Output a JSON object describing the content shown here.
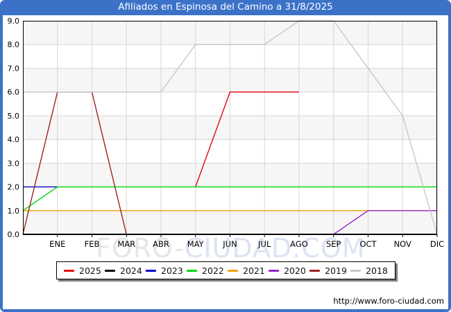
{
  "title_bar": {
    "title": "Afiliados en Espinosa del Camino a 31/8/2025"
  },
  "chart_data": {
    "type": "line",
    "title": "Afiliados en Espinosa del Camino a 31/8/2025",
    "months": [
      "ENE",
      "FEB",
      "MAR",
      "ABR",
      "MAY",
      "JUN",
      "JUL",
      "AGO",
      "SEP",
      "OCT",
      "NOV",
      "DIC"
    ],
    "ytick_labels": [
      "0.0",
      "1.0",
      "2.0",
      "3.0",
      "4.0",
      "5.0",
      "6.0",
      "7.0",
      "8.0",
      "9.0"
    ],
    "ylim": [
      0,
      9
    ],
    "grid": true,
    "legend_position": "bottom",
    "series": [
      {
        "name": "2025",
        "color": "#e60012",
        "prev_dec": null,
        "values": [
          null,
          null,
          null,
          null,
          2,
          6,
          6,
          6,
          null,
          null,
          null,
          null
        ]
      },
      {
        "name": "2024",
        "color": "#000000",
        "prev_dec": null,
        "values": [
          null,
          null,
          null,
          null,
          null,
          null,
          null,
          null,
          null,
          null,
          null,
          null
        ]
      },
      {
        "name": "2023",
        "color": "#0000cc",
        "prev_dec": 2,
        "values": [
          2,
          null,
          null,
          null,
          null,
          null,
          null,
          null,
          null,
          null,
          null,
          null
        ]
      },
      {
        "name": "2022",
        "color": "#00d400",
        "prev_dec": 1,
        "values": [
          2,
          2,
          2,
          2,
          2,
          2,
          2,
          2,
          2,
          2,
          2,
          2
        ]
      },
      {
        "name": "2021",
        "color": "#efa400",
        "prev_dec": 1,
        "values": [
          1,
          1,
          1,
          1,
          1,
          1,
          1,
          1,
          1,
          1,
          1,
          1
        ]
      },
      {
        "name": "2020",
        "color": "#9922cc",
        "prev_dec": 0,
        "values": [
          0,
          0,
          0,
          0,
          0,
          0,
          0,
          0,
          0,
          1,
          1,
          1
        ]
      },
      {
        "name": "2019",
        "color": "#9e2121",
        "prev_dec": 0,
        "values": [
          6,
          6,
          0,
          0,
          0,
          0,
          0,
          0,
          0,
          0,
          0,
          0
        ]
      },
      {
        "name": "2018",
        "color": "#c8c8c8",
        "prev_dec": 6,
        "values": [
          6,
          6,
          6,
          6,
          8,
          8,
          8,
          9,
          9,
          7,
          5,
          0
        ]
      }
    ]
  },
  "watermark": {
    "part1": "FORO-",
    "part2": "CIUDAD.COM"
  },
  "footer": {
    "url": "http://www.foro-ciudad.com"
  },
  "colors": {
    "frame_blue": "#3b72c8",
    "band_gray": "#f6f6f6",
    "grid_gray": "#d6d6d6",
    "axis_black": "#000000",
    "watermark_gray": "#e6e6e6",
    "watermark_blue": "#dce3f4"
  }
}
